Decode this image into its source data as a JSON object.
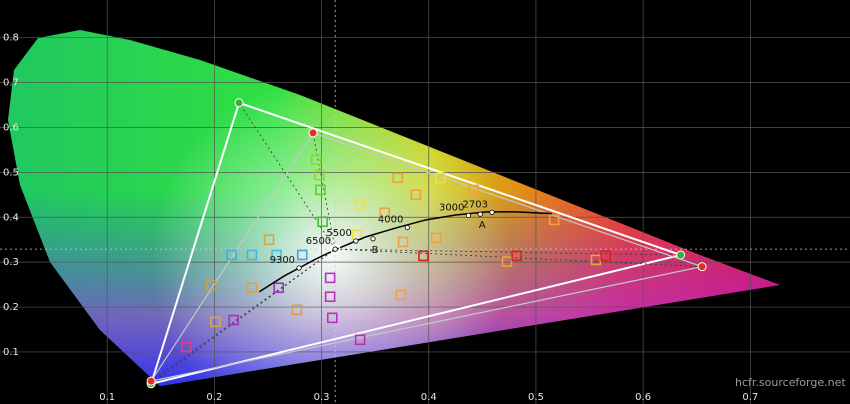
{
  "chart_data": {
    "type": "chromaticity",
    "watermark": "hcfr.sourceforge.net",
    "xlim": [
      0,
      0.793
    ],
    "ylim": [
      -0.016,
      0.884
    ],
    "xticks": [
      0.1,
      0.2,
      0.3,
      0.4,
      0.5,
      0.6,
      0.7
    ],
    "yticks": [
      0.1,
      0.2,
      0.3,
      0.4,
      0.5,
      0.6,
      0.7,
      0.8
    ],
    "grid": true,
    "white_point": {
      "x": 0.3127,
      "y": 0.329
    },
    "triangles": [
      {
        "color": "#ffffff",
        "x": [
          0.223,
          0.635,
          0.141
        ],
        "y": [
          0.655,
          0.316,
          0.029
        ]
      },
      {
        "color": "#c8c8c8",
        "x": [
          0.292,
          0.655,
          0.141
        ],
        "y": [
          0.588,
          0.29,
          0.035
        ]
      }
    ],
    "planckian": {
      "x": [
        0.242,
        0.265,
        0.279,
        0.293,
        0.312,
        0.341,
        0.369,
        0.397,
        0.425,
        0.454,
        0.482,
        0.515
      ],
      "y": [
        0.234,
        0.269,
        0.287,
        0.305,
        0.327,
        0.356,
        0.376,
        0.394,
        0.405,
        0.412,
        0.412,
        0.408
      ]
    },
    "cct_points": [
      {
        "label": "9300",
        "x": 0.279,
        "y": 0.287
      },
      {
        "label": "6500",
        "x": 0.3127,
        "y": 0.329
      },
      {
        "label": "5500",
        "x": 0.332,
        "y": 0.347
      },
      {
        "label": "4000",
        "x": 0.38,
        "y": 0.377
      },
      {
        "label": "3000",
        "x": 0.437,
        "y": 0.404
      },
      {
        "label": "2703",
        "x": 0.459,
        "y": 0.411
      },
      {
        "label": "A",
        "x": 0.448,
        "y": 0.407
      },
      {
        "label": "B",
        "x": 0.348,
        "y": 0.352
      }
    ],
    "targets": {
      "x": [
        0.295,
        0.298,
        0.299,
        0.301,
        0.282,
        0.258,
        0.235,
        0.216,
        0.251,
        0.197,
        0.201,
        0.218,
        0.174,
        0.26,
        0.235,
        0.277,
        0.308,
        0.308,
        0.31,
        0.336,
        0.336,
        0.359,
        0.333,
        0.376,
        0.407,
        0.388,
        0.371,
        0.411,
        0.442,
        0.517,
        0.395,
        0.473,
        0.482,
        0.556,
        0.565,
        0.374
      ],
      "y": [
        0.528,
        0.494,
        0.461,
        0.39,
        0.316,
        0.316,
        0.316,
        0.316,
        0.35,
        0.249,
        0.167,
        0.171,
        0.111,
        0.243,
        0.243,
        0.194,
        0.265,
        0.223,
        0.176,
        0.127,
        0.428,
        0.41,
        0.361,
        0.345,
        0.354,
        0.45,
        0.488,
        0.488,
        0.461,
        0.394,
        0.314,
        0.301,
        0.314,
        0.305,
        0.314,
        0.227
      ],
      "colors": [
        "#7fdc3a",
        "#9ad03a",
        "#5ccf3a",
        "#3cc43a",
        "#4aa0e0",
        "#40c0e0",
        "#40b8e0",
        "#40b0e0",
        "#e0a040",
        "#d0a040",
        "#e0a040",
        "#a030c0",
        "#e04080",
        "#a030c0",
        "#e0a040",
        "#e0a040",
        "#c030c0",
        "#c030c0",
        "#c030c0",
        "#c030a0",
        "#f0e040",
        "#f0a040",
        "#f0e040",
        "#f0a040",
        "#f0a040",
        "#f0a040",
        "#f0a040",
        "#f0e040",
        "#f0a040",
        "#f0a040",
        "#e02020",
        "#f0a040",
        "#e02020",
        "#f0a040",
        "#e02020",
        "#f0a040"
      ]
    }
  }
}
